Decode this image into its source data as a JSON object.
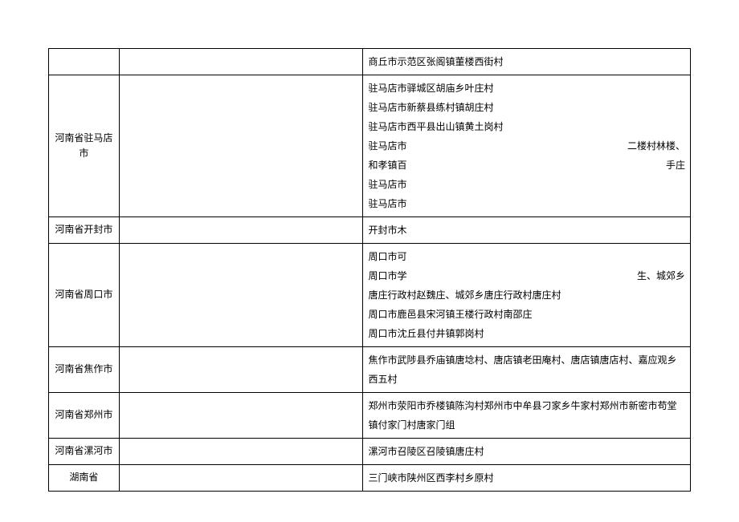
{
  "rows": [
    {
      "col1": "",
      "col3": {
        "lines": [
          {
            "left": "商丘市示范区张阁镇董楼西街村"
          }
        ]
      }
    },
    {
      "col1": "河南省驻马店市",
      "col3": {
        "lines": [
          {
            "left": "驻马店市驿城区胡庙乡叶庄村"
          },
          {
            "left": "驻马店市新蔡县练村镇胡庄村"
          },
          {
            "left": "驻马店市西平县出山镇黄土岗村"
          },
          {
            "left": "驻马店市",
            "right": "二楼村林楼、"
          },
          {
            "left": "和孝镇百",
            "right": "手庄"
          },
          {
            "left": "驻马店市"
          },
          {
            "left": "驻马店市"
          }
        ]
      }
    },
    {
      "col1": "河南省开封市",
      "col3": {
        "lines": [
          {
            "left": "开封市木"
          }
        ]
      }
    },
    {
      "col1": "河南省周口市",
      "col3": {
        "lines": [
          {
            "left": "周口市可"
          },
          {
            "left": "周口市学",
            "right": "生、城郊乡"
          },
          {
            "left": "唐庄行政村赵魏庄、城郊乡唐庄行政村唐庄村"
          },
          {
            "left": "周口市鹿邑县宋河镇王楼行政村南邵庄"
          },
          {
            "left": "周口市沈丘县付井镇郭岗村"
          }
        ]
      }
    },
    {
      "col1": "河南省焦作市",
      "col3": {
        "lines": [
          {
            "left": "焦作市武陟县乔庙镇唐埝村、唐店镇老田庵村、唐店镇唐店村、嘉应观乡西五村"
          }
        ]
      }
    },
    {
      "col1": "河南省郑州市",
      "col3": {
        "lines": [
          {
            "left": "郑州市荥阳市乔楼镇陈沟村郑州市中牟县刁家乡牛家村郑州市新密市苟堂镇付家门村唐家门组"
          }
        ]
      }
    },
    {
      "col1": "河南省漯河市",
      "col3": {
        "lines": [
          {
            "left": "漯河市召陵区召陵镇唐庄村"
          }
        ]
      }
    },
    {
      "col1": "湖南省",
      "col3": {
        "lines": [
          {
            "left": "三门峡市陕州区西李村乡原村"
          }
        ]
      }
    }
  ]
}
